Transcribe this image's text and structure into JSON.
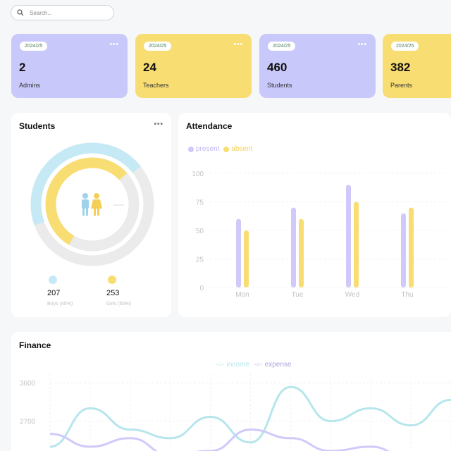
{
  "search": {
    "placeholder": "Search..."
  },
  "cards": [
    {
      "badge": "2024/25",
      "count": "2",
      "label": "Admins",
      "color": "#c9c8fb"
    },
    {
      "badge": "2024/25",
      "count": "24",
      "label": "Teachers",
      "color": "#f8de72"
    },
    {
      "badge": "2024/25",
      "count": "460",
      "label": "Students",
      "color": "#c9c8fb"
    },
    {
      "badge": "2024/25",
      "count": "382",
      "label": "Parents",
      "color": "#f8de72"
    }
  ],
  "students": {
    "title": "Students",
    "boys": {
      "count": "207",
      "label": "Boys (45%)",
      "color": "#c6e9f6"
    },
    "girls": {
      "count": "253",
      "label": "Girls (55%)",
      "color": "#f8de72"
    }
  },
  "attendance": {
    "title": "Attendance",
    "legend": {
      "present": "present",
      "absent": "absent"
    }
  },
  "finance": {
    "title": "Finance",
    "legend": {
      "income": "income",
      "expense": "expense"
    }
  },
  "chart_data": [
    {
      "type": "pie",
      "title": "Students",
      "categories": [
        "Boys",
        "Girls"
      ],
      "values": [
        207,
        253
      ],
      "colors": [
        "#c6e9f6",
        "#f8de72"
      ]
    },
    {
      "type": "bar",
      "title": "Attendance",
      "categories": [
        "Mon",
        "Tue",
        "Wed",
        "Thu"
      ],
      "series": [
        {
          "name": "present",
          "values": [
            60,
            70,
            90,
            65
          ],
          "color": "#cfcafa"
        },
        {
          "name": "absent",
          "values": [
            50,
            60,
            75,
            70
          ],
          "color": "#f8de72"
        }
      ],
      "ylim": [
        0,
        100
      ],
      "yticks": [
        0,
        25,
        50,
        75,
        100
      ],
      "grid": true,
      "legend": "top-left"
    },
    {
      "type": "line",
      "title": "Finance",
      "x": [
        0,
        1,
        2,
        3,
        4,
        5,
        6,
        7,
        8,
        9,
        10
      ],
      "series": [
        {
          "name": "income",
          "values": [
            2100,
            3000,
            2500,
            2300,
            2800,
            2200,
            3500,
            2700,
            3000,
            2600,
            3200
          ],
          "color": "#b6e6ec"
        },
        {
          "name": "expense",
          "values": [
            2400,
            2100,
            2300,
            1900,
            2000,
            2500,
            2300,
            2000,
            2100,
            1800,
            1900
          ],
          "color": "#cfcafa"
        }
      ],
      "yticks": [
        2700,
        3600
      ],
      "ylim": [
        1900,
        3800
      ],
      "grid": true,
      "legend": "top-center"
    }
  ]
}
